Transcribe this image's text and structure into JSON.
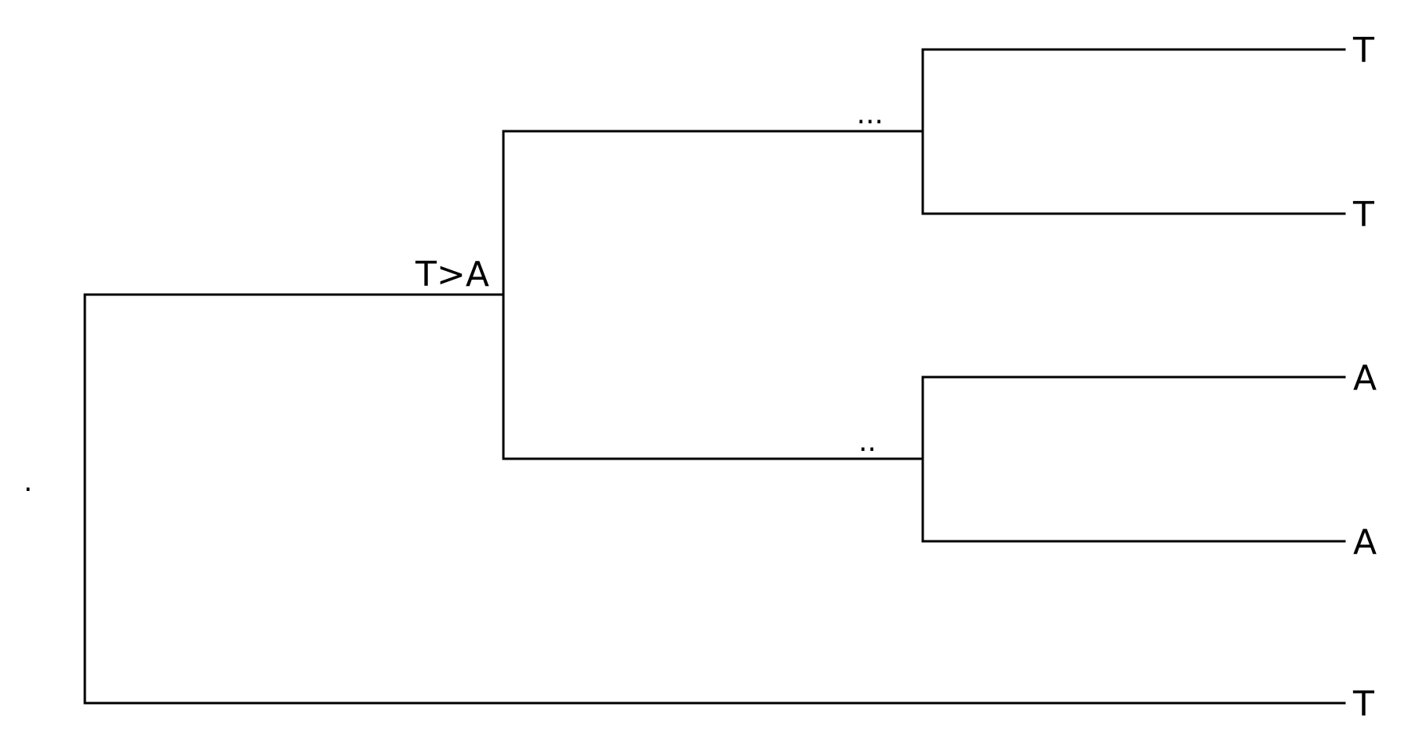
{
  "tree": {
    "root_label": ".",
    "inner_node_labels": {
      "top_clade": "T>A",
      "upper_pair": "...",
      "lower_pair": ".."
    },
    "tips": [
      {
        "label": "T"
      },
      {
        "label": "T"
      },
      {
        "label": "A"
      },
      {
        "label": "A"
      },
      {
        "label": "T"
      }
    ],
    "line_color": "#000000",
    "background": "#ffffff"
  }
}
